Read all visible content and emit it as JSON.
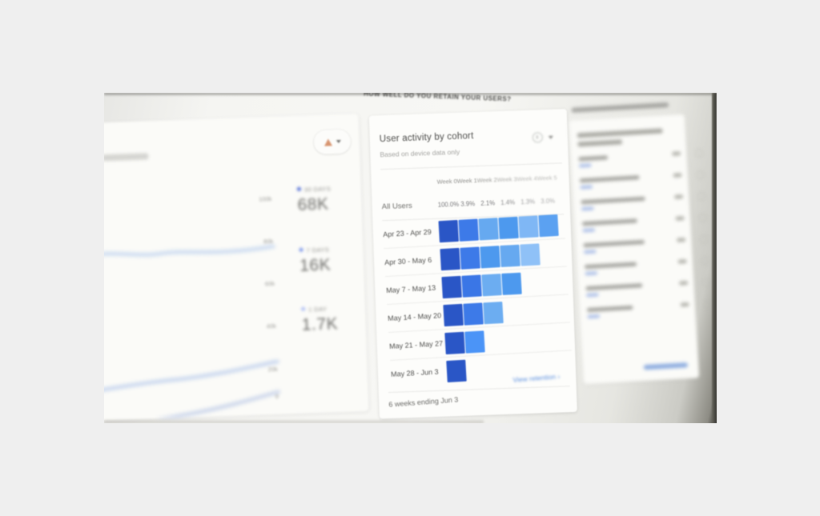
{
  "page": {
    "kicker": "HOW WELL DO YOU RETAIN YOUR USERS?"
  },
  "colors": {
    "accent_blue": "#4285f4",
    "link_blue": "#5b8fe0",
    "warn_orange": "#d08156",
    "cohort_dark": "#2a56c6"
  },
  "left_card": {
    "y_axis_ticks": [
      "100k",
      "80k",
      "60k",
      "40k",
      "20k",
      "0"
    ],
    "legend": [
      {
        "label": "30 DAYS",
        "value": "68K",
        "dot_color": "#4f6bd6"
      },
      {
        "label": "7 DAYS",
        "value": "16K",
        "dot_color": "#7b96ea"
      },
      {
        "label": "1 DAY",
        "value": "1.7K",
        "dot_color": "#aebef5"
      }
    ]
  },
  "cohort_card": {
    "title": "User activity by cohort",
    "subtitle": "Based on device data only",
    "week_headers": [
      "Week 0",
      "Week 1",
      "Week 2",
      "Week 3",
      "Week 4",
      "Week 5"
    ],
    "all_users_label": "All Users",
    "all_users_values": [
      "100.0%",
      "3.9%",
      "2.1%",
      "1.4%",
      "1.3%",
      "3.0%"
    ],
    "rows": [
      {
        "label": "Apr 23 - Apr 29",
        "cells": [
          "#2a56c6",
          "#3d7ae8",
          "#66a9f0",
          "#4d99ee",
          "#7fb7f5",
          "#5ba1f1"
        ]
      },
      {
        "label": "Apr 30 - May 6",
        "cells": [
          "#2a56c6",
          "#3d7ae8",
          "#4d99ee",
          "#66a9f0",
          "#8fc1f7"
        ]
      },
      {
        "label": "May 7 - May 13",
        "cells": [
          "#2a56c6",
          "#3a76e6",
          "#6cadf1",
          "#4d99ee"
        ]
      },
      {
        "label": "May 14 - May 20",
        "cells": [
          "#2a56c6",
          "#3d7ae8",
          "#6cadf1"
        ]
      },
      {
        "label": "May 21 - May 27",
        "cells": [
          "#2a56c6",
          "#4b94f7"
        ]
      },
      {
        "label": "May 28 - Jun 3",
        "cells": [
          "#2a56c6"
        ]
      }
    ],
    "link_label": "View retention",
    "link_arrow": "›",
    "footer": "6 weeks ending Jun 3"
  }
}
